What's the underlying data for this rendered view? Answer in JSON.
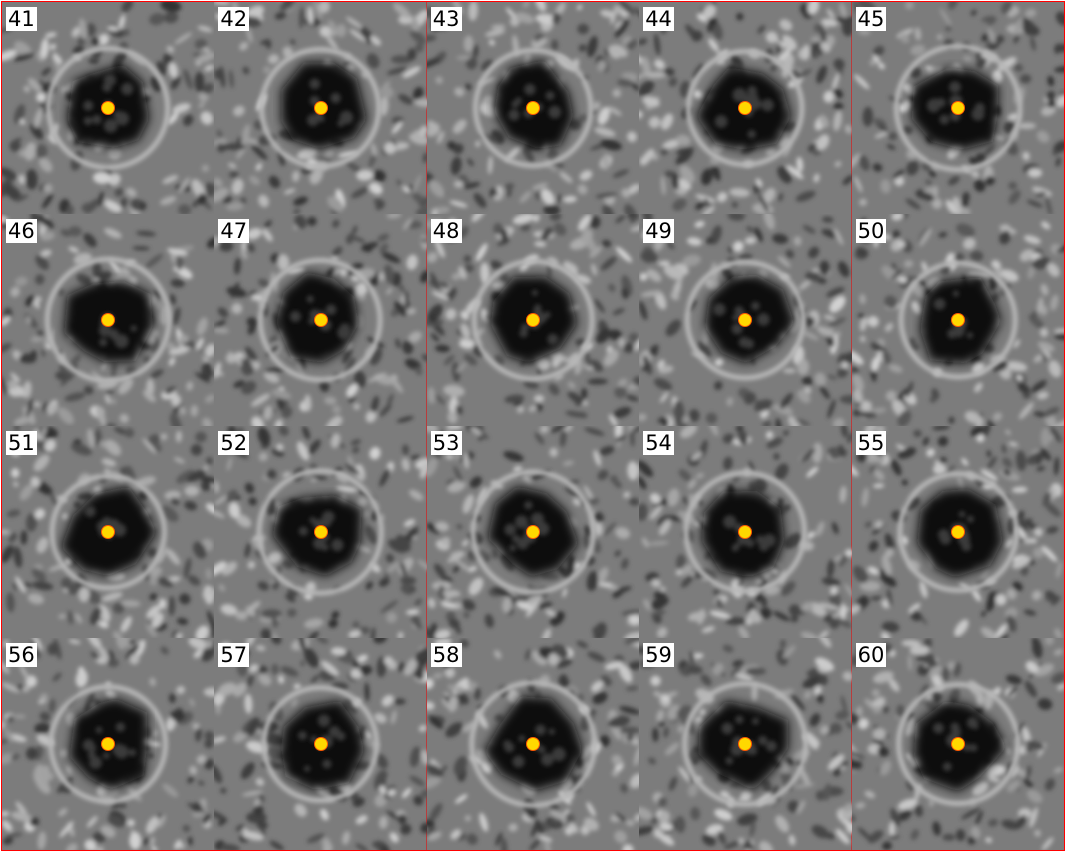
{
  "grid": {
    "columns": 5,
    "rows": 4,
    "border_color": "#ff0000",
    "marker_color": "#ffd800",
    "marker_ring_color": "#ff5a00",
    "tiles": [
      {
        "label": "41"
      },
      {
        "label": "42"
      },
      {
        "label": "43"
      },
      {
        "label": "44"
      },
      {
        "label": "45"
      },
      {
        "label": "46"
      },
      {
        "label": "47"
      },
      {
        "label": "48"
      },
      {
        "label": "49"
      },
      {
        "label": "50"
      },
      {
        "label": "51"
      },
      {
        "label": "52"
      },
      {
        "label": "53"
      },
      {
        "label": "54"
      },
      {
        "label": "55"
      },
      {
        "label": "56"
      },
      {
        "label": "57"
      },
      {
        "label": "58"
      },
      {
        "label": "59"
      },
      {
        "label": "60"
      }
    ]
  }
}
